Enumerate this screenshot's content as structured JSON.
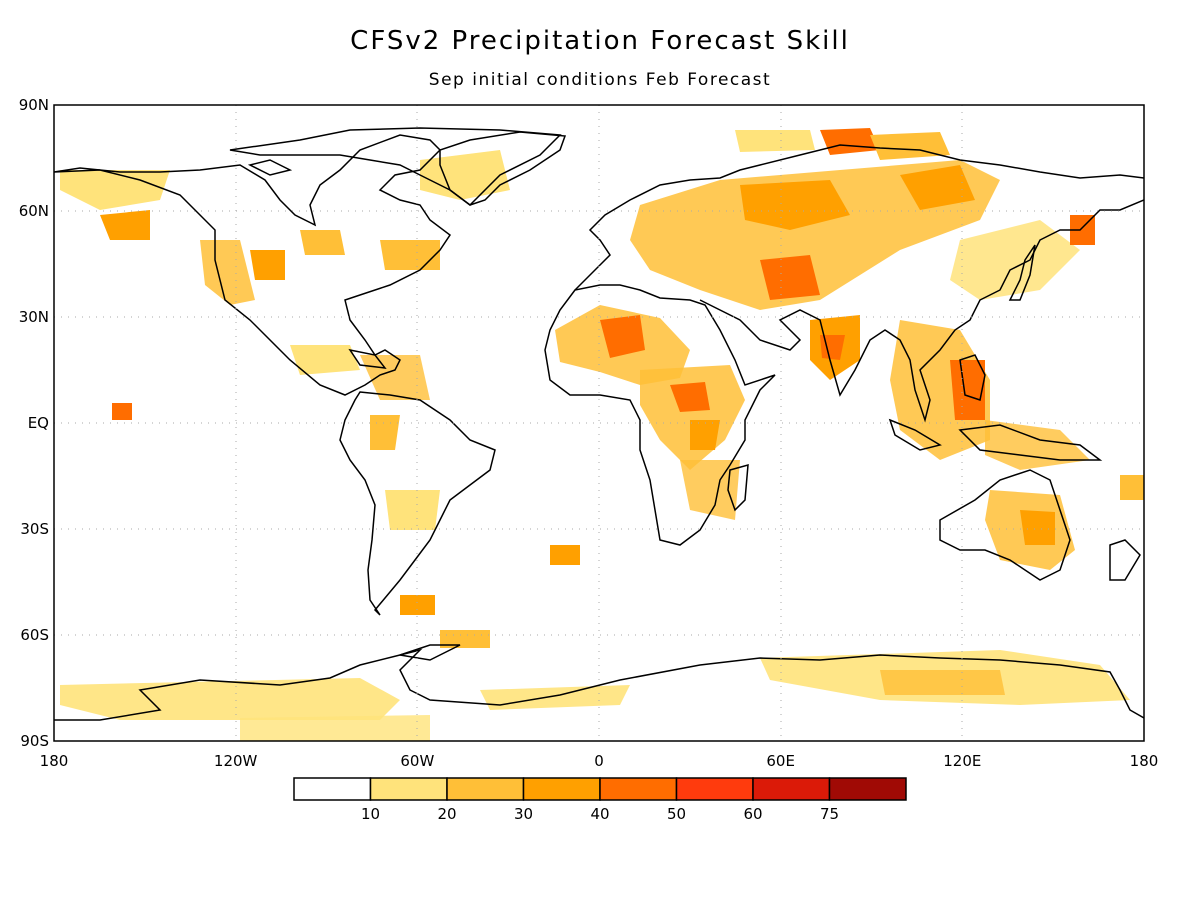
{
  "title": "CFSv2 Precipitation Forecast Skill",
  "subtitle": "Sep initial conditions  Feb Forecast",
  "lat_labels": [
    "90N",
    "60N",
    "30N",
    "EQ",
    "30S",
    "60S",
    "90S"
  ],
  "lon_labels": [
    "180",
    "120W",
    "60W",
    "0",
    "60E",
    "120E",
    "180"
  ],
  "colorbar": {
    "labels": [
      "10",
      "20",
      "30",
      "40",
      "50",
      "60",
      "75"
    ],
    "colors": [
      "#ffffff",
      "#ffe37b",
      "#ffbf37",
      "#ffa000",
      "#ff6d00",
      "#ff3b0d",
      "#db1a08",
      "#a00a05"
    ]
  },
  "skill_regions": [
    {
      "name": "Sahara",
      "lon": 8,
      "lat": 25,
      "level": 3
    },
    {
      "name": "East Africa",
      "lon": 28,
      "lat": 7,
      "level": 3
    },
    {
      "name": "Central Asia",
      "lon": 60,
      "lat": 55,
      "level": 2
    },
    {
      "name": "Central Asia south",
      "lon": 55,
      "lat": 40,
      "level": 3
    },
    {
      "name": "Arctic Siberia",
      "lon": 73,
      "lat": 80,
      "level": 3
    },
    {
      "name": "Philippines",
      "lon": 120,
      "lat": 12,
      "level": 3
    },
    {
      "name": "India",
      "lon": 80,
      "lat": 22,
      "level": 3
    },
    {
      "name": "Australia",
      "lon": 145,
      "lat": -28,
      "level": 2
    },
    {
      "name": "Antarctica",
      "lon": 115,
      "lat": -72,
      "level": 1
    },
    {
      "name": "Central Pacific",
      "lon": -162,
      "lat": 5,
      "level": 3
    },
    {
      "name": "North America west",
      "lon": -112,
      "lat": 45,
      "level": 2
    },
    {
      "name": "Caribbean",
      "lon": -70,
      "lat": 15,
      "level": 2
    },
    {
      "name": "Kamchatka",
      "lon": 160,
      "lat": 57,
      "level": 3
    }
  ]
}
